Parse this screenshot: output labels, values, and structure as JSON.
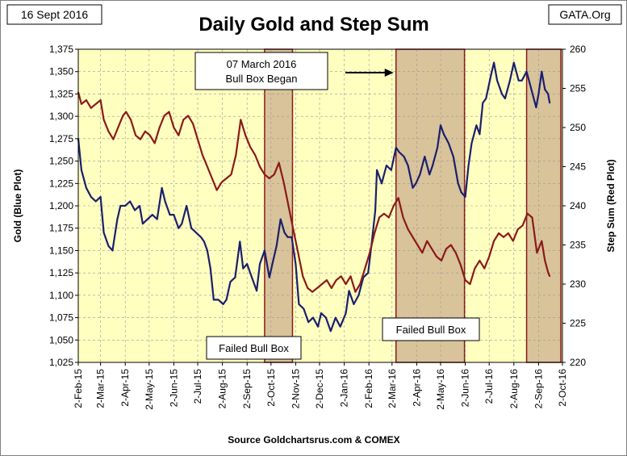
{
  "header": {
    "title": "Daily Gold and Step Sum",
    "date_tag": "16 Sept 2016",
    "brand_tag": "GATA.Org",
    "source": "Source Goldchartsrus.com & COMEX"
  },
  "colors": {
    "plot_bg": "#FFFFC0",
    "gold_line": "#1A1F6E",
    "step_line": "#8B1A1A",
    "box_fill": "#D9C39A",
    "box_border": "#8B1A1A",
    "grid": "#999999"
  },
  "chart_data": {
    "type": "line",
    "title": "Daily Gold and Step Sum",
    "xlabel": "",
    "ylabel": "Gold   (Blue Plot)",
    "y2label": "Step Sum   (Red Plot)",
    "xlim": [
      "2015-02-02",
      "2016-10-02"
    ],
    "ylim": [
      1025,
      1375
    ],
    "y2lim": [
      220,
      260
    ],
    "grid": true,
    "x_tick_labels": [
      "2-Feb-15",
      "2-Mar-15",
      "2-Apr-15",
      "2-May-15",
      "2-Jun-15",
      "2-Jul-15",
      "2-Aug-15",
      "2-Sep-15",
      "2-Oct-15",
      "2-Nov-15",
      "2-Dec-15",
      "2-Jan-16",
      "2-Feb-16",
      "2-Mar-16",
      "2-Apr-16",
      "2-May-16",
      "2-Jun-16",
      "2-Jul-16",
      "2-Aug-16",
      "2-Sep-16",
      "2-Oct-16"
    ],
    "x_tick_dates": [
      "2015-02-02",
      "2015-03-02",
      "2015-04-02",
      "2015-05-02",
      "2015-06-02",
      "2015-07-02",
      "2015-08-02",
      "2015-09-02",
      "2015-10-02",
      "2015-11-02",
      "2015-12-02",
      "2016-01-02",
      "2016-02-02",
      "2016-03-02",
      "2016-04-02",
      "2016-05-02",
      "2016-06-02",
      "2016-07-02",
      "2016-08-02",
      "2016-09-02",
      "2016-10-02"
    ],
    "y_tick_labels": [
      "1,025",
      "1,050",
      "1,075",
      "1,100",
      "1,125",
      "1,150",
      "1,175",
      "1,200",
      "1,225",
      "1,250",
      "1,275",
      "1,300",
      "1,325",
      "1,350",
      "1,375"
    ],
    "y_tick_values": [
      1025,
      1050,
      1075,
      1100,
      1125,
      1150,
      1175,
      1200,
      1225,
      1250,
      1275,
      1300,
      1325,
      1350,
      1375
    ],
    "y2_tick_values": [
      220,
      225,
      230,
      235,
      240,
      245,
      250,
      255,
      260
    ],
    "shaded_boxes": [
      {
        "start": "2015-09-24",
        "end": "2015-10-29",
        "label": "Failed Bull Box"
      },
      {
        "start": "2016-03-07",
        "end": "2016-06-01",
        "label": "Failed Bull Box"
      },
      {
        "start": "2016-08-18",
        "end": "2016-09-30",
        "label": ""
      }
    ],
    "annotation": {
      "text_line1": "07 March 2016",
      "text_line2": "Bull Box Began",
      "arrow_to": "2016-03-07"
    },
    "series": [
      {
        "name": "Gold",
        "axis": "left",
        "points": [
          [
            "2015-02-02",
            1275
          ],
          [
            "2015-02-06",
            1240
          ],
          [
            "2015-02-12",
            1220
          ],
          [
            "2015-02-18",
            1210
          ],
          [
            "2015-02-24",
            1205
          ],
          [
            "2015-03-02",
            1210
          ],
          [
            "2015-03-06",
            1170
          ],
          [
            "2015-03-12",
            1155
          ],
          [
            "2015-03-17",
            1150
          ],
          [
            "2015-03-23",
            1185
          ],
          [
            "2015-03-27",
            1200
          ],
          [
            "2015-04-02",
            1200
          ],
          [
            "2015-04-08",
            1205
          ],
          [
            "2015-04-14",
            1195
          ],
          [
            "2015-04-20",
            1200
          ],
          [
            "2015-04-24",
            1180
          ],
          [
            "2015-04-30",
            1185
          ],
          [
            "2015-05-06",
            1190
          ],
          [
            "2015-05-12",
            1185
          ],
          [
            "2015-05-18",
            1220
          ],
          [
            "2015-05-22",
            1205
          ],
          [
            "2015-05-28",
            1190
          ],
          [
            "2015-06-02",
            1190
          ],
          [
            "2015-06-08",
            1175
          ],
          [
            "2015-06-12",
            1180
          ],
          [
            "2015-06-18",
            1200
          ],
          [
            "2015-06-24",
            1175
          ],
          [
            "2015-06-30",
            1170
          ],
          [
            "2015-07-06",
            1165
          ],
          [
            "2015-07-10",
            1160
          ],
          [
            "2015-07-14",
            1150
          ],
          [
            "2015-07-18",
            1130
          ],
          [
            "2015-07-22",
            1095
          ],
          [
            "2015-07-28",
            1095
          ],
          [
            "2015-08-03",
            1090
          ],
          [
            "2015-08-07",
            1095
          ],
          [
            "2015-08-12",
            1115
          ],
          [
            "2015-08-18",
            1120
          ],
          [
            "2015-08-24",
            1160
          ],
          [
            "2015-08-28",
            1130
          ],
          [
            "2015-09-02",
            1135
          ],
          [
            "2015-09-08",
            1120
          ],
          [
            "2015-09-14",
            1105
          ],
          [
            "2015-09-18",
            1135
          ],
          [
            "2015-09-24",
            1150
          ],
          [
            "2015-09-30",
            1120
          ],
          [
            "2015-10-05",
            1140
          ],
          [
            "2015-10-09",
            1155
          ],
          [
            "2015-10-14",
            1185
          ],
          [
            "2015-10-19",
            1170
          ],
          [
            "2015-10-23",
            1165
          ],
          [
            "2015-10-28",
            1165
          ],
          [
            "2015-11-02",
            1135
          ],
          [
            "2015-11-06",
            1090
          ],
          [
            "2015-11-12",
            1085
          ],
          [
            "2015-11-18",
            1070
          ],
          [
            "2015-11-24",
            1075
          ],
          [
            "2015-11-30",
            1065
          ],
          [
            "2015-12-04",
            1080
          ],
          [
            "2015-12-10",
            1075
          ],
          [
            "2015-12-16",
            1060
          ],
          [
            "2015-12-22",
            1075
          ],
          [
            "2015-12-28",
            1065
          ],
          [
            "2016-01-04",
            1080
          ],
          [
            "2016-01-08",
            1105
          ],
          [
            "2016-01-14",
            1090
          ],
          [
            "2016-01-20",
            1100
          ],
          [
            "2016-01-26",
            1120
          ],
          [
            "2016-02-01",
            1125
          ],
          [
            "2016-02-05",
            1155
          ],
          [
            "2016-02-10",
            1195
          ],
          [
            "2016-02-12",
            1240
          ],
          [
            "2016-02-18",
            1225
          ],
          [
            "2016-02-24",
            1245
          ],
          [
            "2016-03-01",
            1240
          ],
          [
            "2016-03-07",
            1265
          ],
          [
            "2016-03-11",
            1260
          ],
          [
            "2016-03-17",
            1255
          ],
          [
            "2016-03-22",
            1245
          ],
          [
            "2016-03-28",
            1220
          ],
          [
            "2016-04-01",
            1225
          ],
          [
            "2016-04-06",
            1235
          ],
          [
            "2016-04-12",
            1255
          ],
          [
            "2016-04-18",
            1235
          ],
          [
            "2016-04-22",
            1245
          ],
          [
            "2016-04-28",
            1265
          ],
          [
            "2016-05-02",
            1290
          ],
          [
            "2016-05-06",
            1280
          ],
          [
            "2016-05-12",
            1270
          ],
          [
            "2016-05-18",
            1255
          ],
          [
            "2016-05-24",
            1225
          ],
          [
            "2016-05-28",
            1215
          ],
          [
            "2016-06-02",
            1210
          ],
          [
            "2016-06-06",
            1245
          ],
          [
            "2016-06-10",
            1270
          ],
          [
            "2016-06-16",
            1290
          ],
          [
            "2016-06-20",
            1280
          ],
          [
            "2016-06-24",
            1315
          ],
          [
            "2016-06-28",
            1320
          ],
          [
            "2016-07-04",
            1345
          ],
          [
            "2016-07-08",
            1360
          ],
          [
            "2016-07-12",
            1340
          ],
          [
            "2016-07-18",
            1325
          ],
          [
            "2016-07-22",
            1320
          ],
          [
            "2016-07-28",
            1340
          ],
          [
            "2016-08-02",
            1360
          ],
          [
            "2016-08-08",
            1340
          ],
          [
            "2016-08-12",
            1340
          ],
          [
            "2016-08-18",
            1350
          ],
          [
            "2016-08-24",
            1330
          ],
          [
            "2016-08-30",
            1310
          ],
          [
            "2016-09-02",
            1325
          ],
          [
            "2016-09-06",
            1350
          ],
          [
            "2016-09-10",
            1330
          ],
          [
            "2016-09-14",
            1325
          ],
          [
            "2016-09-16",
            1315
          ]
        ]
      },
      {
        "name": "Step Sum",
        "axis": "right",
        "points": [
          [
            "2015-02-02",
            254.5
          ],
          [
            "2015-02-06",
            253
          ],
          [
            "2015-02-12",
            253.5
          ],
          [
            "2015-02-18",
            252.5
          ],
          [
            "2015-02-24",
            253
          ],
          [
            "2015-03-02",
            253.5
          ],
          [
            "2015-03-06",
            251
          ],
          [
            "2015-03-12",
            249.5
          ],
          [
            "2015-03-18",
            248.5
          ],
          [
            "2015-03-24",
            250
          ],
          [
            "2015-03-30",
            251.5
          ],
          [
            "2015-04-03",
            252
          ],
          [
            "2015-04-09",
            251
          ],
          [
            "2015-04-15",
            249
          ],
          [
            "2015-04-21",
            248.5
          ],
          [
            "2015-04-27",
            249.5
          ],
          [
            "2015-05-03",
            249
          ],
          [
            "2015-05-09",
            248
          ],
          [
            "2015-05-15",
            250
          ],
          [
            "2015-05-21",
            251.5
          ],
          [
            "2015-05-27",
            252
          ],
          [
            "2015-06-02",
            250
          ],
          [
            "2015-06-08",
            249
          ],
          [
            "2015-06-14",
            251
          ],
          [
            "2015-06-20",
            251.5
          ],
          [
            "2015-06-26",
            250.5
          ],
          [
            "2015-07-02",
            248.5
          ],
          [
            "2015-07-08",
            246.5
          ],
          [
            "2015-07-14",
            245
          ],
          [
            "2015-07-20",
            243.5
          ],
          [
            "2015-07-26",
            242
          ],
          [
            "2015-08-01",
            243
          ],
          [
            "2015-08-07",
            243.5
          ],
          [
            "2015-08-13",
            244
          ],
          [
            "2015-08-19",
            246.5
          ],
          [
            "2015-08-25",
            251
          ],
          [
            "2015-08-31",
            249
          ],
          [
            "2015-09-06",
            247.5
          ],
          [
            "2015-09-12",
            246.5
          ],
          [
            "2015-09-18",
            245
          ],
          [
            "2015-09-24",
            244
          ],
          [
            "2015-09-30",
            243.5
          ],
          [
            "2015-10-06",
            244
          ],
          [
            "2015-10-12",
            245.5
          ],
          [
            "2015-10-18",
            243
          ],
          [
            "2015-10-24",
            240
          ],
          [
            "2015-10-30",
            237
          ],
          [
            "2015-11-05",
            234
          ],
          [
            "2015-11-11",
            231
          ],
          [
            "2015-11-17",
            229.5
          ],
          [
            "2015-11-23",
            229
          ],
          [
            "2015-11-29",
            229.5
          ],
          [
            "2015-12-05",
            230
          ],
          [
            "2015-12-11",
            230.5
          ],
          [
            "2015-12-17",
            229.5
          ],
          [
            "2015-12-23",
            230.5
          ],
          [
            "2015-12-29",
            231
          ],
          [
            "2016-01-04",
            230
          ],
          [
            "2016-01-10",
            231
          ],
          [
            "2016-01-16",
            229
          ],
          [
            "2016-01-22",
            230
          ],
          [
            "2016-01-28",
            232
          ],
          [
            "2016-02-03",
            234
          ],
          [
            "2016-02-09",
            236.5
          ],
          [
            "2016-02-15",
            238.5
          ],
          [
            "2016-02-21",
            239
          ],
          [
            "2016-02-27",
            238.5
          ],
          [
            "2016-03-04",
            240
          ],
          [
            "2016-03-10",
            241
          ],
          [
            "2016-03-16",
            238.5
          ],
          [
            "2016-03-22",
            237
          ],
          [
            "2016-03-28",
            236
          ],
          [
            "2016-04-03",
            235
          ],
          [
            "2016-04-09",
            234
          ],
          [
            "2016-04-15",
            235.5
          ],
          [
            "2016-04-21",
            234.5
          ],
          [
            "2016-04-27",
            233.5
          ],
          [
            "2016-05-03",
            233
          ],
          [
            "2016-05-09",
            234.5
          ],
          [
            "2016-05-15",
            235
          ],
          [
            "2016-05-21",
            234
          ],
          [
            "2016-05-27",
            232.5
          ],
          [
            "2016-06-02",
            230.5
          ],
          [
            "2016-06-08",
            230
          ],
          [
            "2016-06-14",
            232
          ],
          [
            "2016-06-20",
            233
          ],
          [
            "2016-06-26",
            232
          ],
          [
            "2016-07-02",
            233.5
          ],
          [
            "2016-07-08",
            235.5
          ],
          [
            "2016-07-14",
            236.5
          ],
          [
            "2016-07-20",
            236
          ],
          [
            "2016-07-26",
            236.5
          ],
          [
            "2016-08-01",
            235.5
          ],
          [
            "2016-08-07",
            237
          ],
          [
            "2016-08-13",
            237.5
          ],
          [
            "2016-08-19",
            239
          ],
          [
            "2016-08-25",
            238.5
          ],
          [
            "2016-08-31",
            234
          ],
          [
            "2016-09-06",
            235.5
          ],
          [
            "2016-09-10",
            233
          ],
          [
            "2016-09-14",
            231.5
          ],
          [
            "2016-09-16",
            231
          ]
        ]
      }
    ]
  }
}
